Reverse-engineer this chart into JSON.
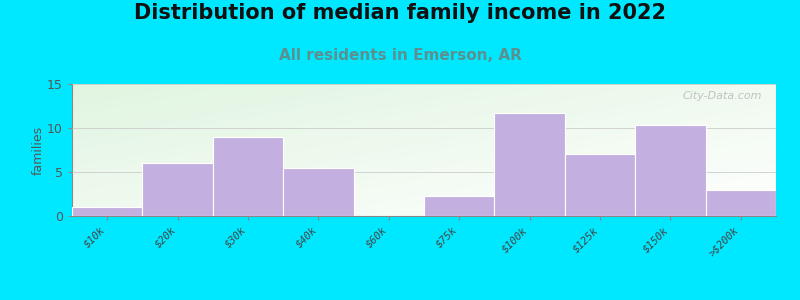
{
  "title": "Distribution of median family income in 2022",
  "subtitle": "All residents in Emerson, AR",
  "categories": [
    "$10k",
    "$20k",
    "$30k",
    "$40k",
    "$60k",
    "$75k",
    "$100k",
    "$125k",
    "$150k",
    ">$200k"
  ],
  "values": [
    1,
    6,
    9,
    5.5,
    0,
    2.3,
    11.7,
    7,
    10.3,
    3
  ],
  "bar_color": "#c4b0e0",
  "bar_edge_color": "#ffffff",
  "ylabel": "families",
  "ylim": [
    0,
    15
  ],
  "yticks": [
    0,
    5,
    10,
    15
  ],
  "background_outer": "#00e8ff",
  "title_fontsize": 15,
  "subtitle_fontsize": 11,
  "subtitle_color": "#5a9090",
  "watermark": "City-Data.com"
}
